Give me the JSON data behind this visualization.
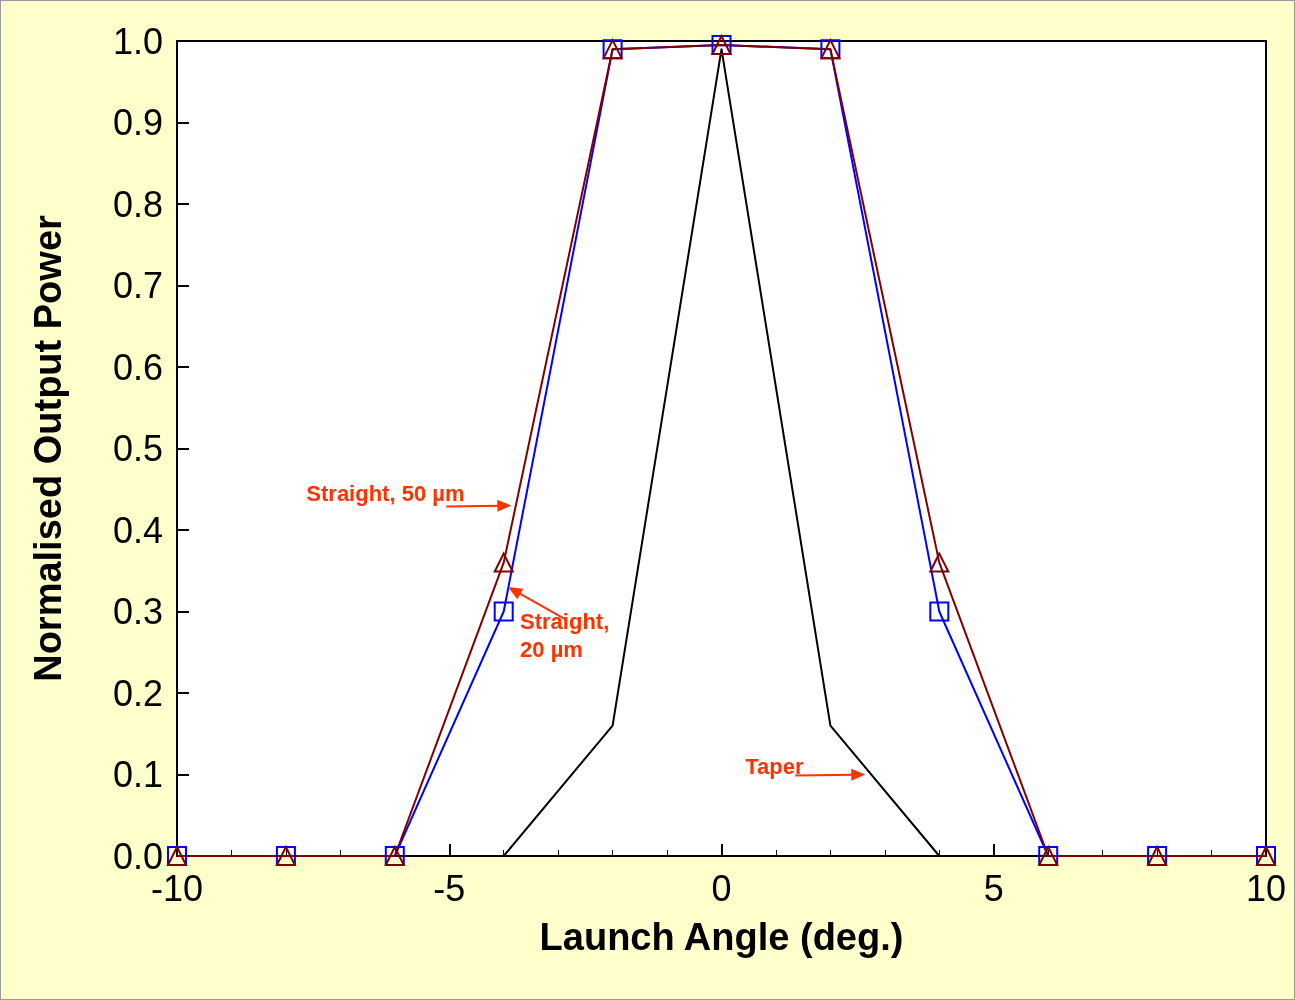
{
  "chart_data": {
    "type": "line",
    "xlabel": "Launch Angle (deg.)",
    "ylabel": "Normalised Output Power",
    "x": [
      -10,
      -8,
      -6,
      -4,
      -2,
      0,
      2,
      4,
      6,
      8,
      10
    ],
    "series": [
      {
        "color": "#0000ff",
        "marker": "square",
        "values": [
          0,
          0,
          0,
          0.3,
          0.99,
          0.995,
          0.99,
          0.3,
          0,
          0,
          0
        ]
      },
      {
        "color": "#800000",
        "marker": "triangle",
        "values": [
          0,
          0,
          0,
          0.36,
          0.99,
          0.995,
          0.99,
          0.36,
          0,
          0,
          0
        ]
      },
      {
        "color": "#000000",
        "marker": "none",
        "x": [
          -4,
          -2,
          0,
          2,
          4
        ],
        "values": [
          0,
          0.16,
          0.99,
          0.16,
          0
        ]
      }
    ],
    "xlim": [
      -10,
      10
    ],
    "xticks": [
      -10,
      -5,
      0,
      5,
      10
    ],
    "ylim": [
      0,
      1
    ],
    "yticks": [
      {
        "value": 0,
        "label": "0.0"
      },
      0.1,
      0.2,
      0.3,
      0.4,
      0.5,
      0.6,
      0.7,
      0.8,
      0.9,
      {
        "value": 1,
        "label": "1.0"
      }
    ],
    "line_style": "solid",
    "annotations": [
      {
        "text": "Straight, 50 µm",
        "x": -3.86,
        "y": 0.43
      },
      {
        "text": "Straight,\n20 µm",
        "x": -3.92,
        "y": 0.33
      },
      {
        "text": "Taper",
        "x": 2.64,
        "y": 0.1
      }
    ]
  }
}
